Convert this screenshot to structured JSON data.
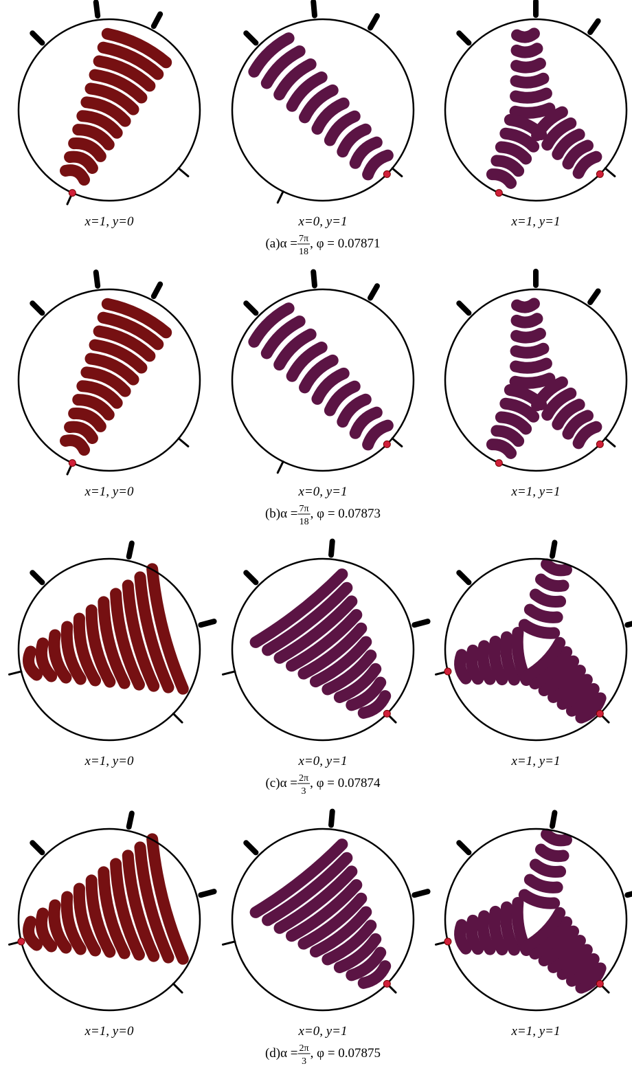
{
  "panels": [
    {
      "labels": [
        "x=1, y=0",
        "x=0, y=1",
        "x=1, y=1"
      ],
      "caption": {
        "prefix": "(a)α = ",
        "num": "7π",
        "den": "18",
        "suffix": ", φ = 0.07871"
      }
    },
    {
      "labels": [
        "x=1, y=0",
        "x=0, y=1",
        "x=1, y=1"
      ],
      "caption": {
        "prefix": "(b)α = ",
        "num": "7π",
        "den": "18",
        "suffix": ", φ = 0.07873"
      }
    },
    {
      "labels": [
        "x=1, y=0",
        "x=0, y=1",
        "x=1, y=1"
      ],
      "caption": {
        "prefix": "(c)α = ",
        "num": "2π",
        "den": "3",
        "suffix": ", φ = 0.07874"
      }
    },
    {
      "labels": [
        "x=1, y=0",
        "x=0, y=1",
        "x=1, y=1"
      ],
      "caption": {
        "prefix": "(d)α = ",
        "num": "2π",
        "den": "3",
        "suffix": ", φ = 0.07875"
      }
    }
  ]
}
